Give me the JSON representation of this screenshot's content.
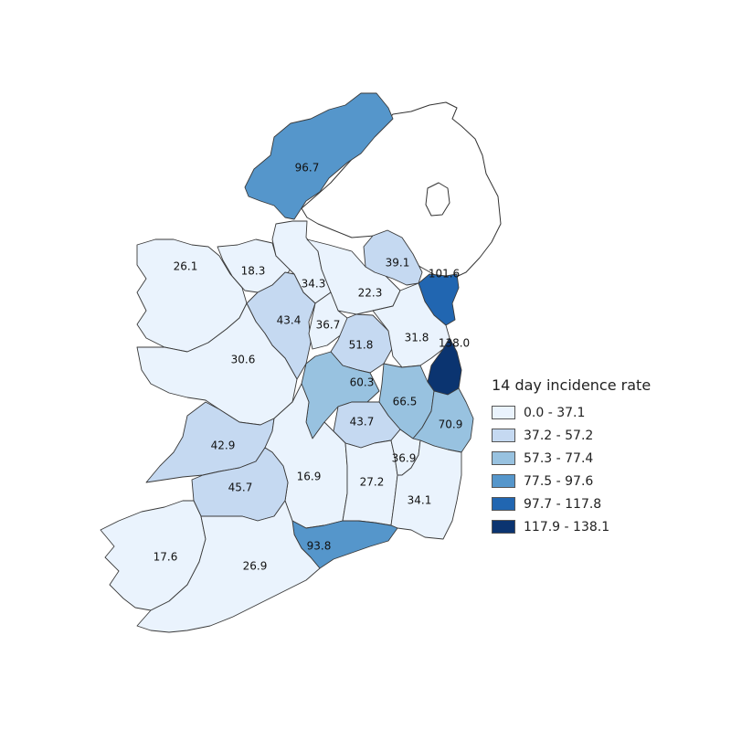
{
  "legend": {
    "title": "14 day incidence rate",
    "classes": [
      {
        "label": "0.0 - 37.1",
        "color": "#eaf3fd"
      },
      {
        "label": "37.2 - 57.2",
        "color": "#c5d9f1"
      },
      {
        "label": "57.3 - 77.4",
        "color": "#98c2e0"
      },
      {
        "label": "77.5 - 97.6",
        "color": "#5596cb"
      },
      {
        "label": "97.7 - 117.8",
        "color": "#2166b1"
      },
      {
        "label": "117.9 - 138.1",
        "color": "#0b3470"
      }
    ]
  },
  "regions": [
    {
      "id": "donegal",
      "rate": "96.7",
      "class": 3
    },
    {
      "id": "sligo",
      "rate": "18.3",
      "class": 0
    },
    {
      "id": "leitrim",
      "rate": "34.3",
      "class": 0
    },
    {
      "id": "cavan",
      "rate": "22.3",
      "class": 0
    },
    {
      "id": "monaghan",
      "rate": "39.1",
      "class": 1
    },
    {
      "id": "louth",
      "rate": "101.6",
      "class": 4
    },
    {
      "id": "mayo",
      "rate": "26.1",
      "class": 0
    },
    {
      "id": "roscommon",
      "rate": "43.4",
      "class": 1
    },
    {
      "id": "longford",
      "rate": "36.7",
      "class": 0
    },
    {
      "id": "westmeath",
      "rate": "51.8",
      "class": 1
    },
    {
      "id": "meath",
      "rate": "31.8",
      "class": 0
    },
    {
      "id": "dublin",
      "rate": "138.0",
      "class": 5
    },
    {
      "id": "galway",
      "rate": "30.6",
      "class": 0
    },
    {
      "id": "offaly",
      "rate": "60.3",
      "class": 2
    },
    {
      "id": "kildare",
      "rate": "66.5",
      "class": 2
    },
    {
      "id": "wicklow",
      "rate": "70.9",
      "class": 2
    },
    {
      "id": "laois",
      "rate": "43.7",
      "class": 1
    },
    {
      "id": "clare",
      "rate": "42.9",
      "class": 1
    },
    {
      "id": "tipperary",
      "rate": "16.9",
      "class": 0
    },
    {
      "id": "kilkenny",
      "rate": "27.2",
      "class": 0
    },
    {
      "id": "carlow",
      "rate": "36.9",
      "class": 0
    },
    {
      "id": "wexford",
      "rate": "34.1",
      "class": 0
    },
    {
      "id": "limerick",
      "rate": "45.7",
      "class": 1
    },
    {
      "id": "waterford",
      "rate": "93.8",
      "class": 3
    },
    {
      "id": "kerry",
      "rate": "17.6",
      "class": 0
    },
    {
      "id": "cork",
      "rate": "26.9",
      "class": 0
    }
  ]
}
